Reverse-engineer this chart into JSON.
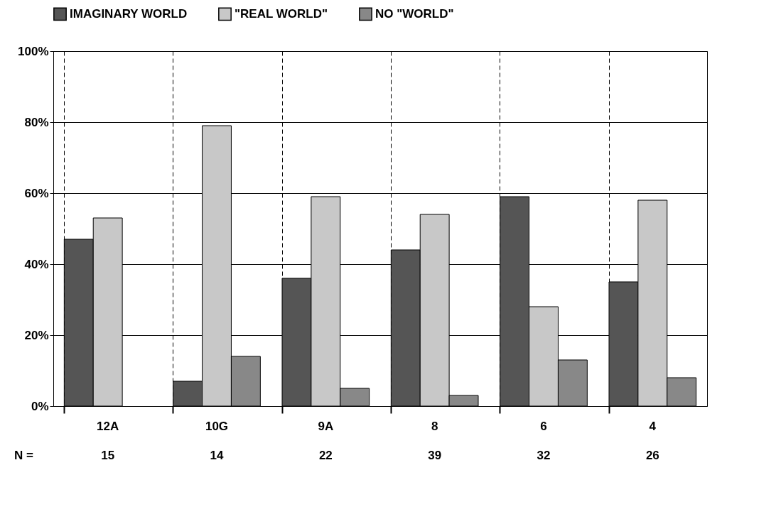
{
  "chart_data": {
    "type": "bar",
    "categories": [
      "12A",
      "10G",
      "9A",
      "8",
      "6",
      "4"
    ],
    "series": [
      {
        "name": "IMAGINARY WORLD",
        "color": "#555555",
        "values": [
          47,
          7,
          36,
          44,
          59,
          35
        ]
      },
      {
        "name": "\"REAL WORLD\"",
        "color": "#c8c8c8",
        "values": [
          53,
          79,
          59,
          54,
          28,
          58
        ]
      },
      {
        "name": "NO \"WORLD\"",
        "color": "#888888",
        "values": [
          null,
          14,
          5,
          3,
          13,
          8
        ]
      }
    ],
    "ylim": [
      0,
      100
    ],
    "yticks": [
      {
        "value": 0,
        "label": "0%"
      },
      {
        "value": 20,
        "label": "20%"
      },
      {
        "value": 40,
        "label": "40%"
      },
      {
        "value": 60,
        "label": "60%"
      },
      {
        "value": 80,
        "label": "80%"
      },
      {
        "value": 100,
        "label": "100%"
      }
    ],
    "grid": true,
    "legend": "top",
    "annotations": [
      "N =",
      "15",
      "14",
      "22",
      "39",
      "32",
      "26"
    ]
  }
}
